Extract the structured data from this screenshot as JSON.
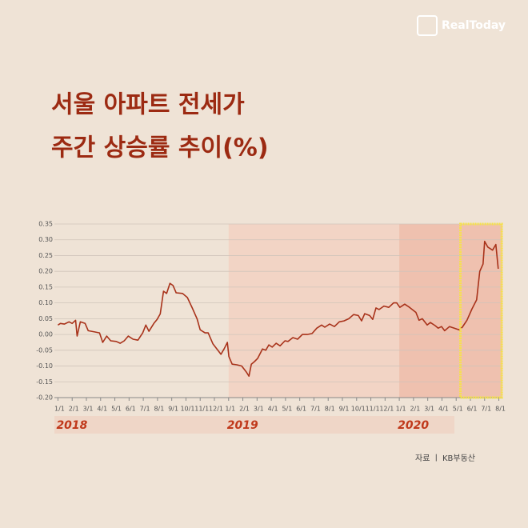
{
  "brand": "RealToday",
  "source": "자료 ㅣ KB부동산",
  "chart_data": {
    "type": "line",
    "title_lines": [
      "서울 아파트 전세가",
      "주간 상승률 추이(%)"
    ],
    "color": "#a8321a",
    "x": [
      0,
      0.17,
      0.45,
      0.78,
      1.0,
      1.24,
      1.35,
      1.57,
      1.91,
      2.13,
      2.58,
      2.92,
      3.15,
      3.43,
      3.71,
      4.1,
      4.38,
      4.66,
      4.94,
      5.28,
      5.62,
      5.96,
      6.18,
      6.4,
      6.74,
      6.97,
      7.19,
      7.42,
      7.64,
      7.87,
      8.09,
      8.31,
      8.76,
      9.1,
      9.44,
      9.78,
      10.0,
      10.34,
      10.56,
      10.9,
      11.24,
      11.46,
      11.69,
      11.91,
      12.02,
      12.25,
      12.58,
      12.92,
      13.26,
      13.43,
      13.6,
      13.82,
      14.04,
      14.38,
      14.61,
      14.83,
      15.06,
      15.34,
      15.62,
      15.96,
      16.18,
      16.52,
      16.85,
      17.19,
      17.53,
      17.87,
      18.2,
      18.54,
      18.76,
      19.1,
      19.44,
      19.78,
      20.11,
      20.45,
      20.79,
      21.12,
      21.35,
      21.57,
      21.91,
      22.13,
      22.36,
      22.58,
      22.92,
      23.26,
      23.6,
      23.82,
      24.04,
      24.38,
      24.72,
      25.17,
      25.39,
      25.62,
      25.96,
      26.18,
      26.52,
      26.74,
      26.97,
      27.19,
      27.53,
      27.87,
      28.2,
      28.43,
      28.76,
      29.1,
      29.44,
      29.66,
      29.89,
      30.0,
      30.22,
      30.56,
      30.79,
      30.96
    ],
    "values": [
      0.03,
      0.035,
      0.033,
      0.04,
      0.035,
      0.045,
      -0.005,
      0.04,
      0.035,
      0.012,
      0.008,
      0.005,
      -0.025,
      -0.005,
      -0.02,
      -0.022,
      -0.028,
      -0.02,
      -0.005,
      -0.015,
      -0.018,
      0.005,
      0.03,
      0.01,
      0.035,
      0.048,
      0.065,
      0.137,
      0.13,
      0.162,
      0.155,
      0.132,
      0.13,
      0.117,
      0.084,
      0.05,
      0.015,
      0.005,
      0.005,
      -0.03,
      -0.05,
      -0.063,
      -0.045,
      -0.025,
      -0.07,
      -0.094,
      -0.096,
      -0.1,
      -0.12,
      -0.132,
      -0.094,
      -0.086,
      -0.076,
      -0.046,
      -0.05,
      -0.033,
      -0.04,
      -0.028,
      -0.036,
      -0.02,
      -0.022,
      -0.01,
      -0.015,
      0,
      0,
      0.003,
      0.02,
      0.03,
      0.023,
      0.033,
      0.025,
      0.04,
      0.043,
      0.05,
      0.063,
      0.06,
      0.043,
      0.066,
      0.06,
      0.048,
      0.084,
      0.079,
      0.09,
      0.086,
      0.1,
      0.1,
      0.086,
      0.096,
      0.086,
      0.07,
      0.045,
      0.05,
      0.03,
      0.038,
      0.028,
      0.02,
      0.025,
      0.012,
      0.025,
      0.02,
      0.015,
      0.023,
      0.045,
      0.08,
      0.11,
      0.2,
      0.223,
      0.295,
      0.277,
      0.267,
      0.285,
      0.208
    ],
    "xlim": [
      -0.25,
      31.25
    ],
    "ylim": [
      -0.2,
      0.35
    ],
    "yticks": [
      {
        "value": -0.2,
        "label": "-0.20"
      },
      {
        "value": -0.15,
        "label": "-0.15"
      },
      {
        "value": -0.1,
        "label": "-0.10"
      },
      {
        "value": -0.05,
        "label": "-0.05"
      },
      {
        "value": 0,
        "label": "0.00"
      },
      {
        "value": 0.05,
        "label": "0.05"
      },
      {
        "value": 0.1,
        "label": "0.10"
      },
      {
        "value": 0.15,
        "label": "0.15"
      },
      {
        "value": 0.2,
        "label": "0.20"
      },
      {
        "value": 0.25,
        "label": "0.25"
      },
      {
        "value": 0.3,
        "label": "0.30"
      },
      {
        "value": 0.35,
        "label": "0.35"
      }
    ],
    "xticks": [
      {
        "value": 0,
        "label": "1/1"
      },
      {
        "value": 1,
        "label": "2/1"
      },
      {
        "value": 2,
        "label": "3/1"
      },
      {
        "value": 3,
        "label": "4/1"
      },
      {
        "value": 4,
        "label": "5/1"
      },
      {
        "value": 5,
        "label": "6/1"
      },
      {
        "value": 6,
        "label": "7/1"
      },
      {
        "value": 7,
        "label": "8/1"
      },
      {
        "value": 8,
        "label": "9/1"
      },
      {
        "value": 9,
        "label": "10/1"
      },
      {
        "value": 10,
        "label": "11/1"
      },
      {
        "value": 11,
        "label": "12/1"
      },
      {
        "value": 12,
        "label": "1/1"
      },
      {
        "value": 13,
        "label": "2/1"
      },
      {
        "value": 14,
        "label": "3/1"
      },
      {
        "value": 15,
        "label": "4/1"
      },
      {
        "value": 16,
        "label": "5/1"
      },
      {
        "value": 17,
        "label": "6/1"
      },
      {
        "value": 18,
        "label": "7/1"
      },
      {
        "value": 19,
        "label": "8/1"
      },
      {
        "value": 20,
        "label": "9/1"
      },
      {
        "value": 21,
        "label": "10/1"
      },
      {
        "value": 22,
        "label": "11/1"
      },
      {
        "value": 23,
        "label": "12/1"
      },
      {
        "value": 24,
        "label": "1/1"
      },
      {
        "value": 25,
        "label": "2/1"
      },
      {
        "value": 26,
        "label": "3/1"
      },
      {
        "value": 27,
        "label": "4/1"
      },
      {
        "value": 28,
        "label": "5/1"
      },
      {
        "value": 29,
        "label": "6/1"
      },
      {
        "value": 30,
        "label": "7/1"
      },
      {
        "value": 31,
        "label": "8/1"
      }
    ],
    "year_labels": [
      {
        "value": 0,
        "label": "2018"
      },
      {
        "value": 12,
        "label": "2019"
      },
      {
        "value": 24,
        "label": "2020"
      }
    ],
    "shaded_regions": [
      {
        "from": 12,
        "to": 24,
        "color": "#f3cfc0"
      },
      {
        "from": 24,
        "to": 31.25,
        "color": "#efb8a5"
      }
    ],
    "highlight": {
      "from": 28.3,
      "to": 31.2,
      "color": "#f6e24a"
    },
    "grid": true
  }
}
